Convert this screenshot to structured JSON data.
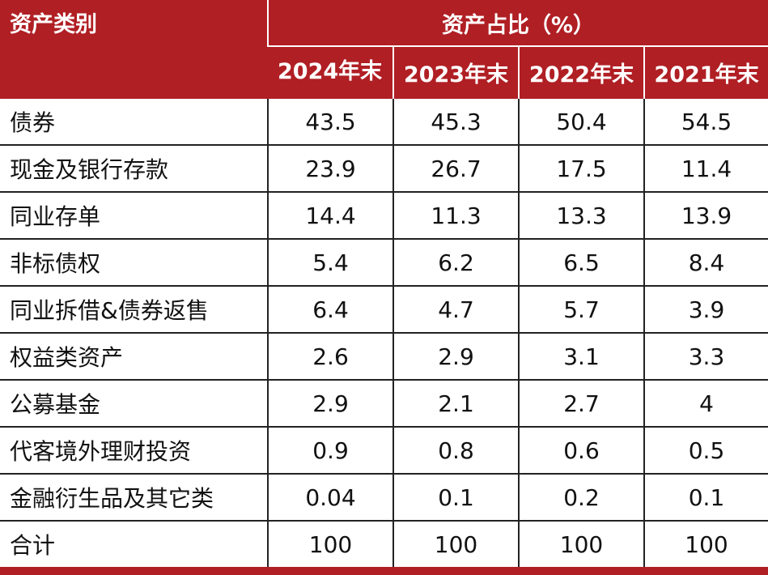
{
  "header": {
    "category_label": "资产类别",
    "group_label": "资产占比（%）",
    "years": [
      "2024年末",
      "2023年末",
      "2022年末",
      "2021年末"
    ]
  },
  "rows": [
    {
      "category": "债券",
      "values": [
        "43.5",
        "45.3",
        "50.4",
        "54.5"
      ]
    },
    {
      "category": "现金及银行存款",
      "values": [
        "23.9",
        "26.7",
        "17.5",
        "11.4"
      ]
    },
    {
      "category": "同业存单",
      "values": [
        "14.4",
        "11.3",
        "13.3",
        "13.9"
      ]
    },
    {
      "category": "非标债权",
      "values": [
        "5.4",
        "6.2",
        "6.5",
        "8.4"
      ]
    },
    {
      "category": "同业拆借&债券返售",
      "values": [
        "6.4",
        "4.7",
        "5.7",
        "3.9"
      ]
    },
    {
      "category": "权益类资产",
      "values": [
        "2.6",
        "2.9",
        "3.1",
        "3.3"
      ]
    },
    {
      "category": "公募基金",
      "values": [
        "2.9",
        "2.1",
        "2.7",
        "4"
      ]
    },
    {
      "category": "代客境外理财投资",
      "values": [
        "0.9",
        "0.8",
        "0.6",
        "0.5"
      ]
    },
    {
      "category": "金融衍生品及其它类",
      "values": [
        "0.04",
        "0.1",
        "0.2",
        "0.1"
      ]
    },
    {
      "category": "合计",
      "values": [
        "100",
        "100",
        "100",
        "100"
      ]
    }
  ],
  "colors": {
    "header_bg": "#b01f24",
    "header_text": "#ffffff",
    "grid": "#222222"
  }
}
